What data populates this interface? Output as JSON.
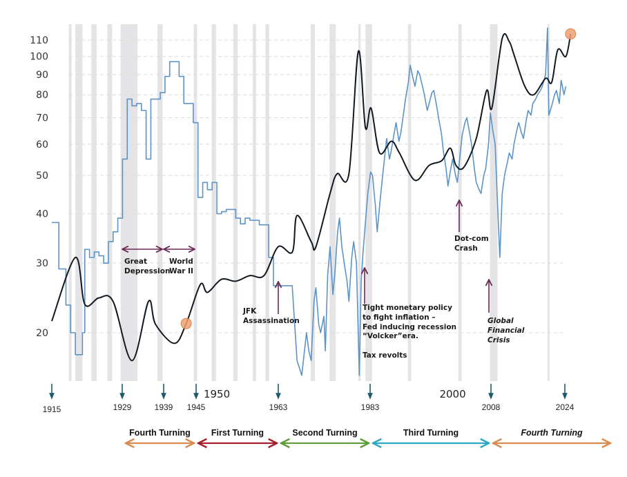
{
  "chart_data": {
    "type": "line",
    "title": "",
    "xlabel": "",
    "ylabel": "",
    "y_scale": "log",
    "ylim": [
      15.5,
      121
    ],
    "xlim": [
      1915,
      2025
    ],
    "grid": "horizontal dashed",
    "y_ticks": [
      20,
      30,
      40,
      50,
      60,
      70,
      80,
      90,
      100,
      110
    ],
    "x_ticks": [
      1950,
      2000
    ],
    "colors": {
      "blue_series": "#5b93c7",
      "black_series": "#111820",
      "marker": "#f0a070",
      "recession": "#e4e4e6",
      "annotation": "#6b2a55",
      "year_arrow": "#1f5a6a"
    },
    "recessions": [
      [
        1918.6,
        1919.2
      ],
      [
        1920.0,
        1921.5
      ],
      [
        1923.4,
        1924.5
      ],
      [
        1926.8,
        1927.8
      ],
      [
        1929.6,
        1933.2
      ],
      [
        1937.4,
        1938.5
      ],
      [
        1945.1,
        1945.8
      ],
      [
        1948.9,
        1949.8
      ],
      [
        1953.5,
        1954.4
      ],
      [
        1957.6,
        1958.3
      ],
      [
        1960.3,
        1961.1
      ],
      [
        1969.9,
        1970.8
      ],
      [
        1973.9,
        1975.2
      ],
      [
        1980.0,
        1980.5
      ],
      [
        1981.5,
        1982.9
      ],
      [
        1990.5,
        1991.2
      ],
      [
        2001.2,
        2001.9
      ],
      [
        2007.9,
        2009.5
      ],
      [
        2020.1,
        2020.4
      ]
    ],
    "series": [
      {
        "key": "blue",
        "step": true,
        "points": [
          [
            1915,
            38
          ],
          [
            1916.5,
            29
          ],
          [
            1918,
            23.5
          ],
          [
            1919,
            20
          ],
          [
            1920,
            17.6
          ],
          [
            1921.5,
            20
          ],
          [
            1922,
            32.5
          ],
          [
            1923,
            31
          ],
          [
            1924,
            32
          ],
          [
            1925,
            31.3
          ],
          [
            1926,
            30
          ],
          [
            1927,
            34
          ],
          [
            1928,
            36
          ],
          [
            1929,
            39
          ],
          [
            1930,
            55
          ],
          [
            1931,
            78
          ],
          [
            1932,
            75
          ],
          [
            1933,
            76
          ],
          [
            1934,
            73
          ],
          [
            1935,
            55
          ],
          [
            1936,
            78
          ],
          [
            1938,
            81
          ],
          [
            1939,
            89
          ],
          [
            1940,
            97
          ],
          [
            1942,
            89
          ],
          [
            1943,
            76
          ],
          [
            1945,
            68
          ],
          [
            1946,
            44
          ],
          [
            1947,
            48
          ],
          [
            1948,
            46
          ],
          [
            1949,
            48
          ],
          [
            1950,
            40
          ],
          [
            1951,
            40.5
          ],
          [
            1952,
            41
          ],
          [
            1954,
            39
          ],
          [
            1955,
            37.7
          ],
          [
            1956,
            39
          ],
          [
            1957,
            38.5
          ],
          [
            1959,
            37.5
          ],
          [
            1961,
            31
          ],
          [
            1962,
            26.3
          ],
          [
            1965,
            26.3
          ],
          [
            1966,
            26
          ]
        ]
      },
      {
        "key": "blue_daily",
        "step": false,
        "points": [
          [
            1966,
            26
          ],
          [
            1967,
            17
          ],
          [
            1968,
            15.6
          ],
          [
            1969,
            20
          ],
          [
            1969.5,
            18
          ],
          [
            1970,
            17
          ],
          [
            1970.6,
            24
          ],
          [
            1971,
            26
          ],
          [
            1971.6,
            21
          ],
          [
            1972,
            20
          ],
          [
            1972.7,
            22
          ],
          [
            1973,
            18
          ],
          [
            1973.5,
            28
          ],
          [
            1974,
            33
          ],
          [
            1974.6,
            25
          ],
          [
            1975,
            28
          ],
          [
            1975.6,
            36
          ],
          [
            1976,
            39
          ],
          [
            1976.5,
            33
          ],
          [
            1977,
            30
          ],
          [
            1977.6,
            27
          ],
          [
            1978,
            24
          ],
          [
            1978.6,
            31
          ],
          [
            1979,
            34
          ],
          [
            1979.6,
            30
          ],
          [
            1980.2,
            15.6
          ],
          [
            1980.6,
            27
          ],
          [
            1981,
            32
          ],
          [
            1981.5,
            38
          ],
          [
            1982,
            45
          ],
          [
            1982.6,
            51
          ],
          [
            1983,
            50
          ],
          [
            1983.6,
            42
          ],
          [
            1984,
            36
          ],
          [
            1984.6,
            43
          ],
          [
            1985,
            48
          ],
          [
            1985.6,
            56
          ],
          [
            1986,
            62
          ],
          [
            1986.6,
            55
          ],
          [
            1987,
            58
          ],
          [
            1987.6,
            64
          ],
          [
            1988,
            68
          ],
          [
            1988.6,
            61
          ],
          [
            1989,
            64
          ],
          [
            1989.6,
            72
          ],
          [
            1990,
            78
          ],
          [
            1990.6,
            86
          ],
          [
            1991,
            95
          ],
          [
            1991.6,
            88
          ],
          [
            1992,
            84
          ],
          [
            1992.6,
            92
          ],
          [
            1993,
            90
          ],
          [
            1993.6,
            84
          ],
          [
            1994,
            80
          ],
          [
            1994.6,
            73
          ],
          [
            1995,
            76
          ],
          [
            1995.6,
            81
          ],
          [
            1996,
            82
          ],
          [
            1996.6,
            75
          ],
          [
            1997,
            70
          ],
          [
            1997.6,
            64
          ],
          [
            1998,
            58
          ],
          [
            1998.6,
            52
          ],
          [
            1999,
            47
          ],
          [
            1999.6,
            52
          ],
          [
            2000,
            55
          ],
          [
            2000.6,
            50
          ],
          [
            2001,
            48
          ],
          [
            2001.6,
            57
          ],
          [
            2002,
            63
          ],
          [
            2002.6,
            68
          ],
          [
            2003,
            70
          ],
          [
            2003.6,
            64
          ],
          [
            2004,
            60
          ],
          [
            2004.6,
            52
          ],
          [
            2005,
            48
          ],
          [
            2005.6,
            46
          ],
          [
            2006,
            45
          ],
          [
            2006.6,
            50
          ],
          [
            2007,
            52
          ],
          [
            2007.6,
            60
          ],
          [
            2008,
            72
          ],
          [
            2008.5,
            65
          ],
          [
            2009,
            60
          ],
          [
            2009.6,
            40
          ],
          [
            2010,
            31
          ],
          [
            2010.5,
            45
          ],
          [
            2011,
            50
          ],
          [
            2011.6,
            54
          ],
          [
            2012,
            57
          ],
          [
            2012.6,
            55
          ],
          [
            2013,
            60
          ],
          [
            2013.6,
            65
          ],
          [
            2014,
            68
          ],
          [
            2014.6,
            64
          ],
          [
            2015,
            62
          ],
          [
            2015.6,
            69
          ],
          [
            2016,
            73
          ],
          [
            2016.6,
            71
          ],
          [
            2017,
            76
          ],
          [
            2017.6,
            78
          ],
          [
            2018,
            80
          ],
          [
            2018.6,
            82
          ],
          [
            2019,
            84
          ],
          [
            2019.7,
            90
          ],
          [
            2020.1,
            118
          ],
          [
            2020.4,
            71
          ],
          [
            2021,
            75
          ],
          [
            2021.6,
            80
          ],
          [
            2022,
            82
          ],
          [
            2022.6,
            76
          ],
          [
            2023,
            87
          ],
          [
            2023.6,
            80
          ],
          [
            2024,
            84
          ]
        ]
      },
      {
        "key": "black",
        "step": false,
        "smooth": true,
        "points": [
          [
            1915,
            21.4
          ],
          [
            1920,
            31
          ],
          [
            1922,
            23.6
          ],
          [
            1925,
            24.5
          ],
          [
            1928,
            24
          ],
          [
            1932,
            17
          ],
          [
            1935.5,
            24
          ],
          [
            1937,
            21
          ],
          [
            1941,
            18.8
          ],
          [
            1943.5,
            21.1
          ],
          [
            1946.5,
            26.5
          ],
          [
            1948,
            25.3
          ],
          [
            1951,
            27.3
          ],
          [
            1954,
            27
          ],
          [
            1957,
            27.9
          ],
          [
            1960,
            27.9
          ],
          [
            1963,
            33
          ],
          [
            1966,
            32
          ],
          [
            1967,
            39.6
          ],
          [
            1970,
            34
          ],
          [
            1971,
            33
          ],
          [
            1974,
            45
          ],
          [
            1975.5,
            50.5
          ],
          [
            1978,
            50.5
          ],
          [
            1980,
            103
          ],
          [
            1981.5,
            66
          ],
          [
            1982.7,
            74
          ],
          [
            1984.5,
            57
          ],
          [
            1987,
            61
          ],
          [
            1988.7,
            57
          ],
          [
            1992,
            48.6
          ],
          [
            1995,
            53
          ],
          [
            1997.7,
            54.5
          ],
          [
            1999.5,
            58.6
          ],
          [
            2000.7,
            53
          ],
          [
            2002.4,
            52.5
          ],
          [
            2005,
            62
          ],
          [
            2007.2,
            82
          ],
          [
            2008.3,
            74
          ],
          [
            2010.5,
            111
          ],
          [
            2012,
            109
          ],
          [
            2013,
            101
          ],
          [
            2015.3,
            84
          ],
          [
            2017.2,
            80
          ],
          [
            2019.7,
            88
          ],
          [
            2021,
            86
          ],
          [
            2022.3,
            104
          ],
          [
            2024,
            100
          ],
          [
            2025,
            114
          ]
        ]
      }
    ],
    "markers": [
      [
        1943.5,
        21.1
      ],
      [
        2025,
        114
      ]
    ],
    "year_markers": [
      "1915",
      "1929",
      "1939",
      "1945",
      "1963",
      "1983",
      "2008",
      "2024"
    ],
    "turnings": [
      {
        "label": "Fourth Turning",
        "from": 1929,
        "to": 1945,
        "color": "#d98b4f",
        "italic": false
      },
      {
        "label": "First Turning",
        "from": 1945,
        "to": 1963,
        "color": "#a3202c",
        "italic": false
      },
      {
        "label": "Second Turning",
        "from": 1963,
        "to": 1983,
        "color": "#5f9b3a",
        "italic": false
      },
      {
        "label": "Third Turning",
        "from": 1983,
        "to": 2008,
        "color": "#2aa8c4",
        "italic": false
      },
      {
        "label": "Fourth Turning",
        "from": 2008,
        "to": 2034,
        "color": "#d98b4f",
        "italic": true
      }
    ],
    "annotations": {
      "great_depression": [
        "Great",
        "Depression"
      ],
      "world_war": [
        "World",
        "War II"
      ],
      "jfk": [
        "JFK",
        "Assassination"
      ],
      "volcker": [
        "Tight monetary policy",
        "to fight inflation –",
        "Fed inducing recession",
        "“Volcker”era.",
        "",
        "Tax revolts"
      ],
      "dotcom": [
        "Dot-com",
        "Crash"
      ],
      "gfc": [
        "Global",
        "Financial",
        "Crisis"
      ]
    }
  }
}
